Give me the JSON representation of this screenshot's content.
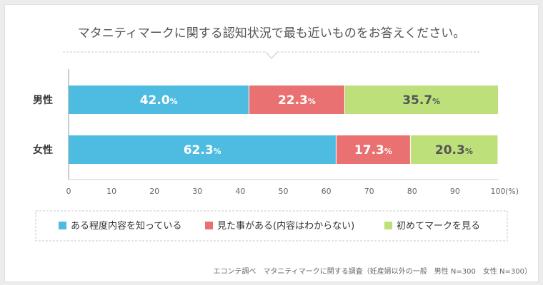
{
  "title": "マタニティマークに関する認知状況で最も近いものをお答えください。",
  "source": "エコンテ調べ　マタニティマークに関する調査（妊産婦以外の一般　男性 N=300　女性 N=300）",
  "colors": {
    "series1": "#4ebbe0",
    "series2": "#ea7171",
    "series3": "#bde07a"
  },
  "chart_data": {
    "type": "bar",
    "orientation": "horizontal",
    "stacked": true,
    "categories": [
      "男性",
      "女性"
    ],
    "series": [
      {
        "name": "ある程度内容を知っている",
        "values": [
          42.0,
          62.3
        ]
      },
      {
        "name": "見た事がある(内容はわからない)",
        "values": [
          22.3,
          17.3
        ]
      },
      {
        "name": "初めてマークを見る",
        "values": [
          35.7,
          20.3
        ]
      }
    ],
    "value_unit": "%",
    "xlim": [
      0,
      100
    ],
    "xticks": [
      "0",
      "10",
      "20",
      "30",
      "40",
      "50",
      "60",
      "70",
      "80",
      "90",
      "100"
    ],
    "xunit": "(%)",
    "legend": "bottom",
    "grid": false
  }
}
